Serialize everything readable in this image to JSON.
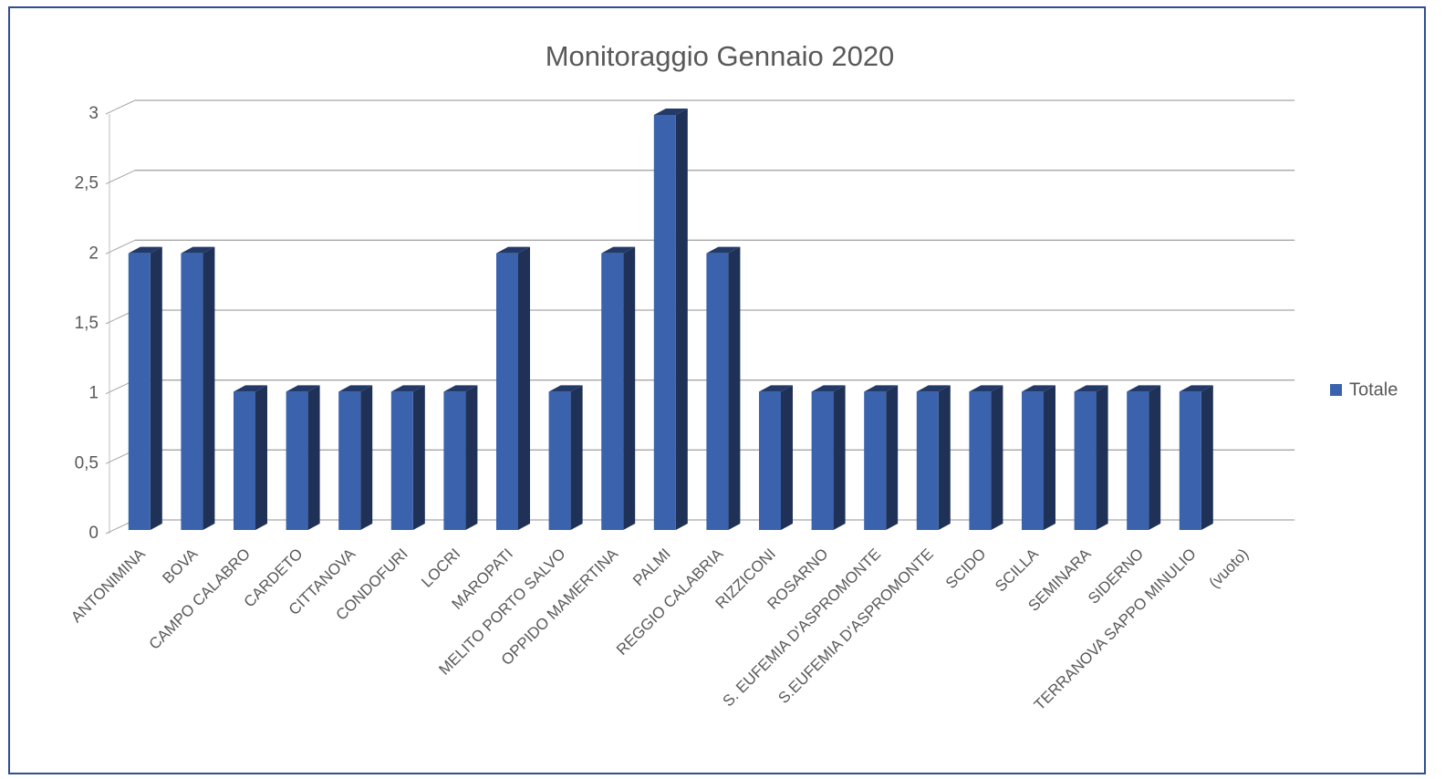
{
  "chart_data": {
    "type": "bar3d",
    "title": "Monitoraggio Gennaio 2020",
    "categories": [
      "ANTONIMINA",
      "BOVA",
      "CAMPO CALABRO",
      "CARDETO",
      "CITTANOVA",
      "CONDOFURI",
      "LOCRI",
      "MAROPATI",
      "MELITO PORTO SALVO",
      "OPPIDO MAMERTINA",
      "PALMI",
      "REGGIO CALABRIA",
      "RIZZICONI",
      "ROSARNO",
      "S. EUFEMIA D'ASPROMONTE",
      "S.EUFEMIA D'ASPROMONTE",
      "SCIDO",
      "SCILLA",
      "SEMINARA",
      "SIDERNO",
      "TERRANOVA SAPPO MINULIO",
      "(vuoto)"
    ],
    "series": [
      {
        "name": "Totale",
        "color": "#3a62ad",
        "values": [
          2,
          2,
          1,
          1,
          1,
          1,
          1,
          2,
          1,
          2,
          3,
          2,
          1,
          1,
          1,
          1,
          1,
          1,
          1,
          1,
          1,
          null
        ]
      }
    ],
    "ylim": [
      0,
      3
    ],
    "yticks": [
      0,
      {
        "value": 0.5,
        "label": "0,5"
      },
      1,
      {
        "value": 1.5,
        "label": "1,5"
      },
      2,
      {
        "value": 2.5,
        "label": "2,5"
      },
      3
    ],
    "grid": true,
    "legend": "right"
  }
}
